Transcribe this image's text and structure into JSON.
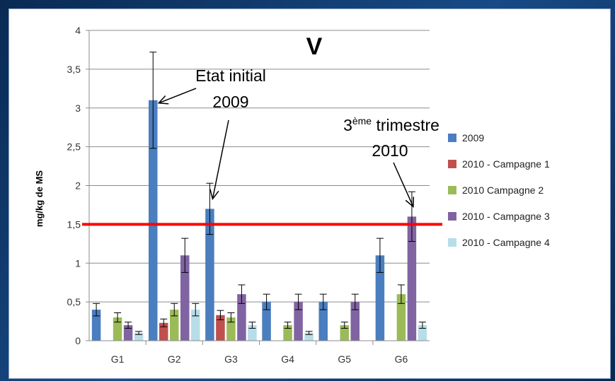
{
  "chart_data": {
    "type": "bar",
    "title": "V",
    "ylabel": "mg/kg de MS",
    "xlabel": "",
    "ylim": [
      0,
      4
    ],
    "yticks": [
      0,
      0.5,
      1,
      1.5,
      2,
      2.5,
      3,
      3.5,
      4
    ],
    "ytick_labels": [
      "0",
      "0,5",
      "1",
      "1,5",
      "2",
      "2,5",
      "3",
      "3,5",
      "4"
    ],
    "grid": true,
    "legend_position": "right",
    "categories": [
      "G1",
      "G2",
      "G3",
      "G4",
      "G5",
      "G6"
    ],
    "series": [
      {
        "name": "2009",
        "color": "#4a7ebf",
        "values": [
          0.4,
          3.1,
          1.7,
          0.5,
          0.5,
          1.1
        ],
        "errors": [
          0.08,
          0.62,
          0.33,
          0.1,
          0.1,
          0.22
        ]
      },
      {
        "name": "2010 - Campagne 1",
        "color": "#c0504d",
        "values": [
          null,
          0.23,
          0.33,
          null,
          null,
          null
        ],
        "errors": [
          null,
          0.05,
          0.06,
          null,
          null,
          null
        ]
      },
      {
        "name": "2010   Campagne 2",
        "color": "#9bbb59",
        "values": [
          0.3,
          0.4,
          0.3,
          0.2,
          0.2,
          0.6
        ],
        "errors": [
          0.06,
          0.08,
          0.06,
          0.04,
          0.04,
          0.12
        ]
      },
      {
        "name": "2010 - Campagne 3",
        "color": "#8064a2",
        "values": [
          0.2,
          1.1,
          0.6,
          0.5,
          0.5,
          1.6
        ],
        "errors": [
          0.04,
          0.22,
          0.12,
          0.1,
          0.1,
          0.32
        ]
      },
      {
        "name": "2010 - Campagne 4",
        "color": "#b7dde8",
        "values": [
          0.1,
          0.4,
          0.2,
          0.1,
          null,
          0.2
        ],
        "errors": [
          0.02,
          0.08,
          0.04,
          0.02,
          null,
          0.04
        ]
      }
    ],
    "threshold": {
      "value": 1.5,
      "color": "#ff0000"
    },
    "annotations": [
      {
        "lines": [
          "Etat initial",
          "2009"
        ],
        "points_to": [
          {
            "category": "G2",
            "series": "2009"
          },
          {
            "category": "G3",
            "series": "2009"
          }
        ]
      },
      {
        "lines": [
          "3ème trimestre",
          "2010"
        ],
        "points_to": [
          {
            "category": "G6",
            "series": "2010 - Campagne 3"
          }
        ]
      }
    ]
  }
}
